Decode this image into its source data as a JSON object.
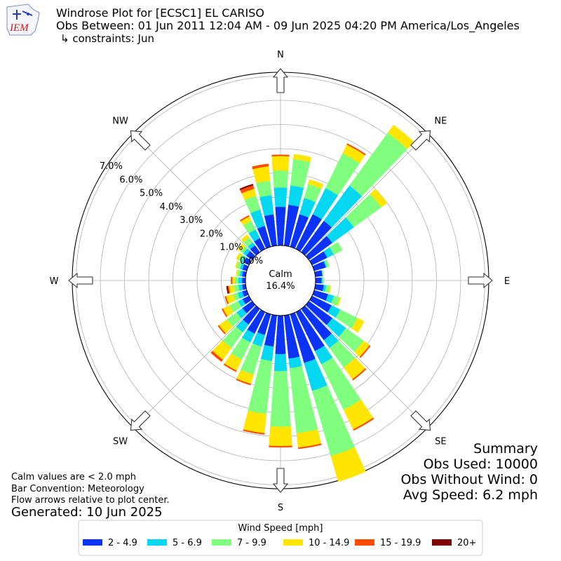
{
  "header": {
    "logo_text": "IEM",
    "title": "Windrose Plot for [ECSC1] EL CARISO",
    "subtitle": "Obs Between: 01 Jun 2011 12:04 AM - 09 Jun 2025 04:20 PM America/Los_Angeles",
    "constraints": "↳ constraints: Jun"
  },
  "center": {
    "calm_label": "Calm",
    "calm_value": "16.4%"
  },
  "notes": {
    "line1": "Calm values are < 2.0 mph",
    "line2": "Bar Convention: Meteorology",
    "line3": "Flow arrows relative to plot center.",
    "generated": "Generated: 10 Jun 2025"
  },
  "summary": {
    "title": "Summary",
    "obs_used": "Obs Used: 10000",
    "obs_without_wind": "Obs Without Wind: 0",
    "avg_speed": "Avg Speed: 6.2 mph"
  },
  "legend": {
    "title": "Wind Speed [mph]",
    "items": [
      {
        "label": "2 - 4.9",
        "color": "#0b33f5"
      },
      {
        "label": "5 - 6.9",
        "color": "#03d7f2"
      },
      {
        "label": "7 - 9.9",
        "color": "#80ff7f"
      },
      {
        "label": "10 - 14.9",
        "color": "#ffe500"
      },
      {
        "label": "15 - 19.9",
        "color": "#ff4a00"
      },
      {
        "label": "20+",
        "color": "#7f0000"
      }
    ]
  },
  "chart_data": {
    "type": "windrose",
    "title": "Windrose Plot for [ECSC1] EL CARISO",
    "radial_unit": "percent",
    "radial_ticks": [
      "0.0%",
      "1.0%",
      "2.0%",
      "3.0%",
      "4.0%",
      "5.0%",
      "6.0%",
      "7.0%"
    ],
    "radial_range": [
      0,
      7.5
    ],
    "calm_percent": 16.4,
    "direction_labels": [
      "N",
      "NE",
      "E",
      "SE",
      "S",
      "SW",
      "W",
      "NW"
    ],
    "direction_step_deg": 10,
    "directions_deg": [
      0,
      10,
      20,
      30,
      40,
      50,
      60,
      70,
      80,
      90,
      100,
      110,
      120,
      130,
      140,
      150,
      160,
      170,
      180,
      190,
      200,
      210,
      220,
      230,
      240,
      250,
      260,
      270,
      280,
      290,
      300,
      310,
      320,
      330,
      340,
      350
    ],
    "speed_bins": [
      "2 - 4.9",
      "5 - 6.9",
      "7 - 9.9",
      "10 - 14.9",
      "15 - 19.9",
      "20+"
    ],
    "cumulative_percent": [
      [
        1.6,
        2.4,
        3.1,
        3.7,
        3.75,
        3.75
      ],
      [
        1.7,
        2.5,
        3.6,
        3.8,
        3.8,
        3.8
      ],
      [
        1.4,
        2.1,
        2.7,
        2.9,
        2.9,
        2.9
      ],
      [
        1.6,
        2.8,
        4.4,
        4.8,
        4.85,
        4.85
      ],
      [
        1.6,
        3.4,
        6.1,
        6.5,
        6.5,
        6.5
      ],
      [
        1.2,
        2.3,
        3.7,
        4.0,
        4.0,
        4.0
      ],
      [
        0.7,
        1.0,
        1.4,
        1.4,
        1.4,
        1.4
      ],
      [
        0.5,
        0.55,
        0.65,
        0.65,
        0.65,
        0.65
      ],
      [
        0.3,
        0.3,
        0.35,
        0.35,
        0.35,
        0.35
      ],
      [
        0.25,
        0.3,
        0.35,
        0.35,
        0.35,
        0.35
      ],
      [
        0.35,
        0.45,
        0.6,
        0.65,
        0.65,
        0.65
      ],
      [
        0.6,
        0.85,
        1.1,
        1.15,
        1.15,
        1.15
      ],
      [
        0.9,
        1.3,
        2.1,
        2.4,
        2.4,
        2.4
      ],
      [
        1.2,
        1.9,
        2.8,
        3.1,
        3.15,
        3.15
      ],
      [
        1.6,
        2.0,
        3.0,
        3.6,
        3.65,
        3.65
      ],
      [
        1.8,
        2.4,
        4.5,
        5.4,
        5.45,
        5.45
      ],
      [
        2.1,
        3.3,
        6.1,
        7.2,
        7.2,
        7.2
      ],
      [
        1.8,
        2.2,
        4.9,
        5.5,
        5.55,
        5.55
      ],
      [
        1.6,
        2.3,
        4.6,
        5.4,
        5.45,
        5.45
      ],
      [
        1.3,
        1.9,
        4.1,
        4.9,
        4.95,
        4.95
      ],
      [
        0.9,
        1.4,
        2.6,
        3.0,
        3.05,
        3.05
      ],
      [
        1.0,
        1.4,
        2.2,
        2.7,
        2.75,
        2.75
      ],
      [
        0.8,
        1.2,
        2.0,
        2.6,
        2.7,
        2.7
      ],
      [
        0.5,
        0.8,
        1.3,
        1.7,
        1.75,
        1.75
      ],
      [
        0.3,
        0.5,
        0.9,
        1.2,
        1.25,
        1.25
      ],
      [
        0.2,
        0.4,
        0.6,
        0.9,
        0.95,
        0.95
      ],
      [
        0.15,
        0.3,
        0.5,
        0.7,
        0.75,
        0.8
      ],
      [
        0.15,
        0.3,
        0.45,
        0.55,
        0.6,
        0.6
      ],
      [
        0.15,
        0.25,
        0.35,
        0.4,
        0.4,
        0.4
      ],
      [
        0.2,
        0.3,
        0.45,
        0.5,
        0.5,
        0.5
      ],
      [
        0.25,
        0.35,
        0.5,
        0.6,
        0.6,
        0.6
      ],
      [
        0.3,
        0.45,
        0.6,
        0.75,
        0.75,
        0.75
      ],
      [
        0.35,
        0.5,
        0.75,
        0.9,
        0.9,
        0.9
      ],
      [
        0.5,
        0.9,
        1.3,
        1.5,
        1.55,
        1.55
      ],
      [
        0.9,
        1.6,
        2.2,
        2.5,
        2.65,
        2.7
      ],
      [
        1.3,
        2.1,
        2.7,
        3.3,
        3.4,
        3.4
      ]
    ]
  }
}
